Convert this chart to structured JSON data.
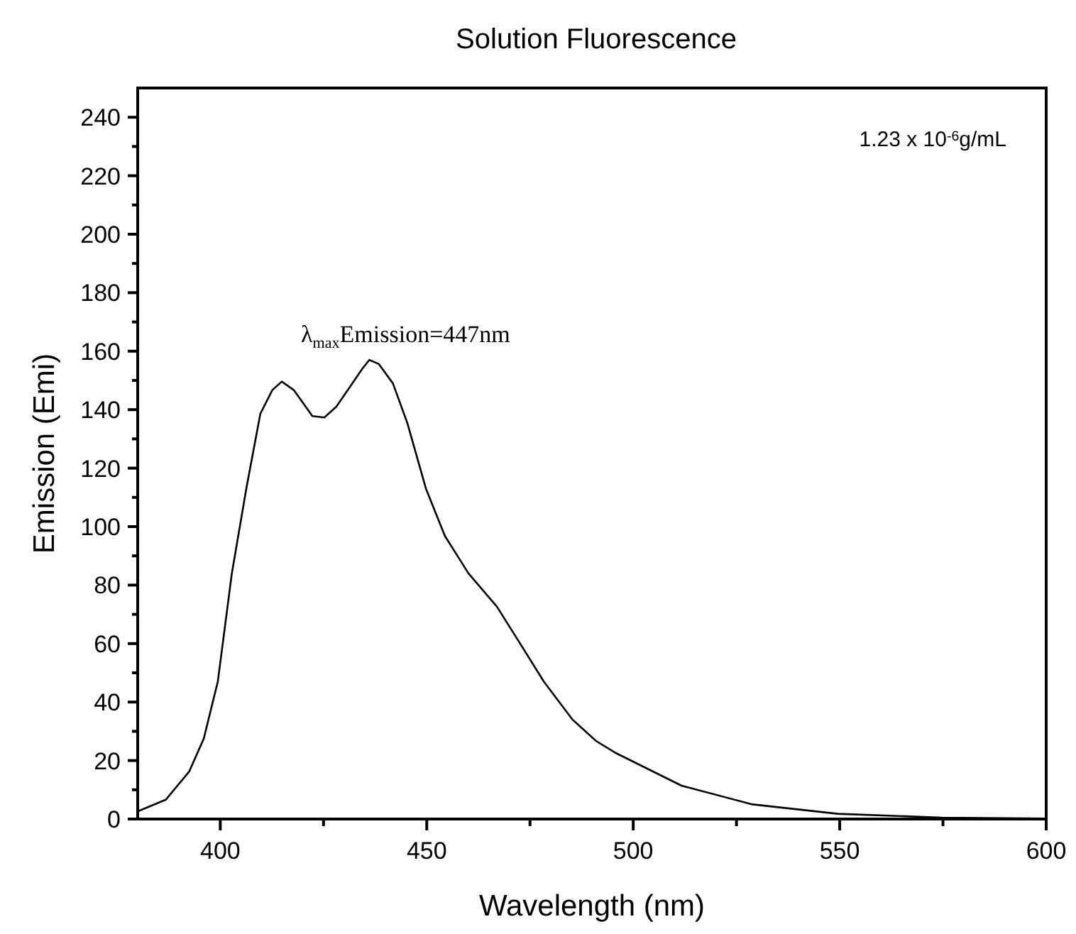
{
  "chart_data": {
    "type": "line",
    "title": "Solution Fluorescence",
    "xlabel": "Wavelength (nm)",
    "ylabel": "Emission (Emi)",
    "annotations": [
      "λ$_{max}$Emission=447nm",
      "1.23 x 10$^{-6}$g/mL"
    ],
    "xlim": [
      380,
      600
    ],
    "ylim": [
      0,
      250
    ],
    "xticks": [
      400,
      {
        "value": 425,
        "label": null
      },
      450,
      {
        "value": 475,
        "label": null
      },
      500,
      {
        "value": 525,
        "label": null
      },
      550,
      {
        "value": 575,
        "label": null
      },
      600
    ],
    "yticks": [
      0,
      {
        "value": 10,
        "label": null
      },
      20,
      {
        "value": 30,
        "label": null
      },
      40,
      {
        "value": 50,
        "label": null
      },
      60,
      {
        "value": 70,
        "label": null
      },
      80,
      {
        "value": 90,
        "label": null
      },
      100,
      {
        "value": 110,
        "label": null
      },
      120,
      {
        "value": 130,
        "label": null
      },
      140,
      {
        "value": 150,
        "label": null
      },
      160,
      {
        "value": 170,
        "label": null
      },
      180,
      {
        "value": 190,
        "label": null
      },
      200,
      {
        "value": 210,
        "label": null
      },
      220,
      {
        "value": 230,
        "label": null
      },
      240
    ],
    "grid": false,
    "marker": "none",
    "line_style": "solid",
    "series": [
      {
        "color": "#000000",
        "x": [
          380,
          386.8,
          392.5,
          396,
          399.4,
          402.8,
          406.3,
          409.7,
          412.6,
          414.9,
          417.8,
          422.3,
          425.2,
          428.1,
          431.5,
          434.4,
          436.1,
          438.4,
          441.8,
          445.3,
          449.8,
          454.4,
          460.1,
          467,
          472.7,
          478.4,
          485.3,
          491,
          495.6,
          511.7,
          528.9,
          549.5,
          574.7,
          600
        ],
        "values": [
          2.6,
          6.6,
          16.3,
          27.5,
          47,
          84,
          113,
          138.6,
          146.7,
          149.6,
          146.7,
          137.8,
          137.3,
          141,
          148,
          154,
          157,
          155.6,
          149,
          135.4,
          113,
          96.8,
          84,
          72.6,
          59.8,
          46.9,
          34,
          26.7,
          22.7,
          11.4,
          5,
          1.8,
          0.5,
          0.2
        ]
      }
    ]
  }
}
